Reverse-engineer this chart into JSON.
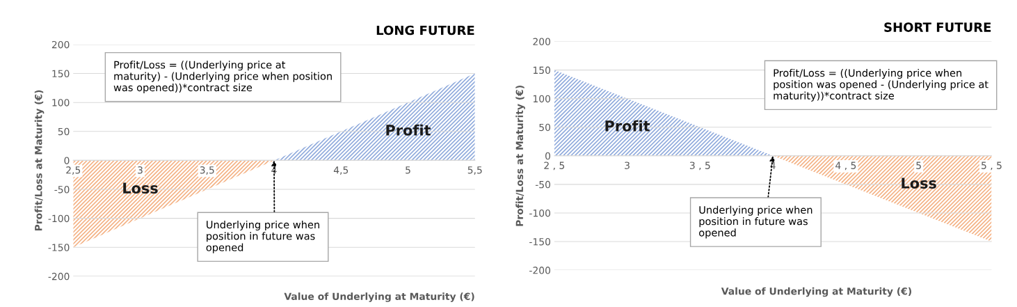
{
  "chart_data": [
    {
      "type": "area",
      "title": "LONG FUTURE",
      "xlabel": "Value of Underlying at Maturity (€)",
      "ylabel": "Profit/Loss at Maturity (€)",
      "series": [
        {
          "name": "Loss",
          "color": "#f4b183",
          "x": [
            2.5,
            4
          ],
          "values": [
            -150,
            0
          ]
        },
        {
          "name": "Profit",
          "color": "#8faadc",
          "x": [
            4,
            5.5
          ],
          "values": [
            0,
            150
          ]
        }
      ],
      "xlim": [
        2.5,
        5.5
      ],
      "xticks": [
        {
          "value": 2.5,
          "label": "2,5"
        },
        3,
        {
          "value": 3.5,
          "label": "3,5"
        },
        4,
        {
          "value": 4.5,
          "label": "4,5"
        },
        5,
        {
          "value": 5.5,
          "label": "5,5"
        }
      ],
      "ylim": [
        -200,
        200
      ],
      "yticks": [
        -200,
        -150,
        -100,
        -50,
        0,
        50,
        100,
        150,
        200
      ],
      "grid": "y",
      "annotations": [
        "Profit/Loss = ((Underlying price at maturity) - (Underlying price when position was opened))*contract size",
        {
          "text": "Underlying price when position in future was opened",
          "x": 4,
          "y": 0
        }
      ]
    },
    {
      "type": "area",
      "title": "SHORT FUTURE",
      "xlabel": "Value of Underlying at Maturity (€)",
      "ylabel": "Profit/Loss at Maturity (€)",
      "series": [
        {
          "name": "Profit",
          "color": "#8faadc",
          "x": [
            2.5,
            4
          ],
          "values": [
            150,
            0
          ]
        },
        {
          "name": "Loss",
          "color": "#f4b183",
          "x": [
            4,
            5.5
          ],
          "values": [
            0,
            -150
          ]
        }
      ],
      "xlim": [
        2.5,
        5.5
      ],
      "xticks": [
        {
          "value": 2.5,
          "label": "2 , 5"
        },
        3,
        {
          "value": 3.5,
          "label": "3 , 5"
        },
        4,
        {
          "value": 4.5,
          "label": "4 , 5"
        },
        5,
        {
          "value": 5.5,
          "label": "5 , 5"
        }
      ],
      "ylim": [
        -200,
        200
      ],
      "yticks": [
        -200,
        -150,
        -100,
        -50,
        0,
        50,
        100,
        150,
        200
      ],
      "grid": "y",
      "annotations": [
        "Profit/Loss = ((Underlying price when position was opened - (Underlying price at maturity))*contract size",
        {
          "text": "Underlying price when position in future was opened",
          "x": 4,
          "y": 0
        }
      ]
    }
  ]
}
